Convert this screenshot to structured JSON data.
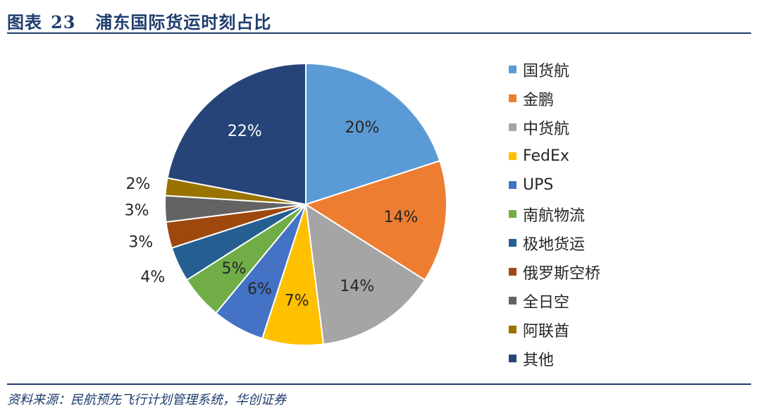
{
  "header": {
    "fig_prefix": "图表",
    "fig_number": "23",
    "title": "浦东国际货运时刻占比"
  },
  "chart_data": {
    "type": "pie",
    "title": "浦东国际货运时刻占比",
    "legend_position": "right",
    "start": "12 o'clock, clockwise",
    "series": [
      {
        "name": "国货航",
        "value": 20,
        "label": "20%",
        "color": "#5b9bd5"
      },
      {
        "name": "金鹏",
        "value": 14,
        "label": "14%",
        "color": "#ed7d31"
      },
      {
        "name": "中货航",
        "value": 14,
        "label": "14%",
        "color": "#a5a5a5"
      },
      {
        "name": "FedEx",
        "value": 7,
        "label": "7%",
        "color": "#ffc000"
      },
      {
        "name": "UPS",
        "value": 6,
        "label": "6%",
        "color": "#4472c4"
      },
      {
        "name": "南航物流",
        "value": 5,
        "label": "5%",
        "color": "#70ad47"
      },
      {
        "name": "极地货运",
        "value": 4,
        "label": "4%",
        "color": "#255e91"
      },
      {
        "name": "俄罗斯空桥",
        "value": 3,
        "label": "3%",
        "color": "#9e480e"
      },
      {
        "name": "全日空",
        "value": 3,
        "label": "3%",
        "color": "#636363"
      },
      {
        "name": "阿联酋",
        "value": 2,
        "label": "2%",
        "color": "#997300"
      },
      {
        "name": "其他",
        "value": 22,
        "label": "22%",
        "color": "#264478"
      }
    ]
  },
  "footer": {
    "source": "资料来源：民航预先飞行计划管理系统，华创证券"
  }
}
